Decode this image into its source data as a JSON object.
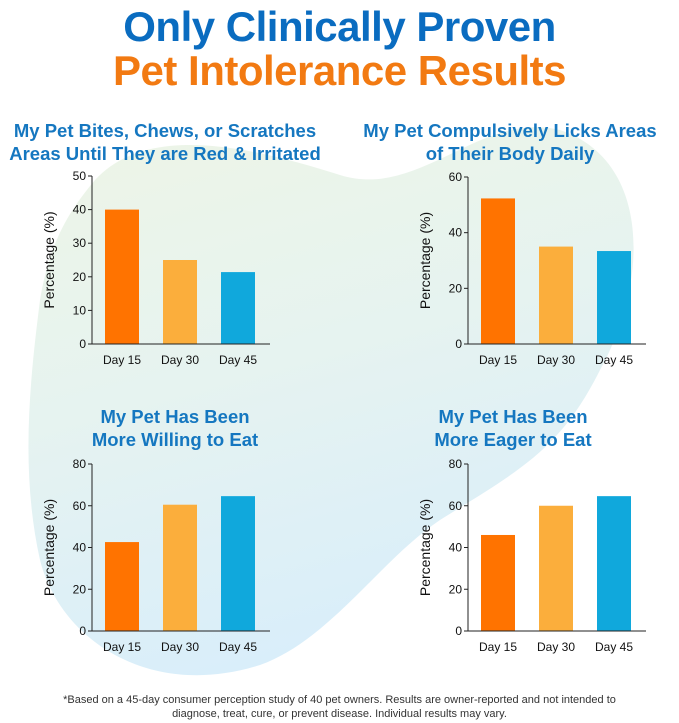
{
  "header": {
    "line1": "Only Clinically Proven",
    "line2": "Pet Intolerance Results",
    "line1_color": "#0a6cc0",
    "line2_color": "#f27a12"
  },
  "colors": {
    "day15": "#ff7300",
    "day30": "#fbae3c",
    "day45": "#10a8dc",
    "title": "#1577c0"
  },
  "chart_data": [
    {
      "type": "bar",
      "title": "My Pet Bites, Chews, or Scratches Areas Until They are Red & Irritated",
      "title_lines": [
        "My Pet Bites, Chews, or Scratches",
        "Areas Until They are Red & Irritated"
      ],
      "categories": [
        "Day 15",
        "Day 30",
        "Day 45"
      ],
      "values": [
        40,
        25,
        21.4
      ],
      "ylabel": "Percentage (%)",
      "ylim": [
        0,
        50
      ],
      "yticks": [
        0,
        10,
        20,
        30,
        40,
        50
      ],
      "grid": false
    },
    {
      "type": "bar",
      "title": "My Pet Compulsively Licks Areas of Their Body Daily",
      "title_lines": [
        "My Pet Compulsively Licks Areas",
        "of Their Body Daily"
      ],
      "categories": [
        "Day 15",
        "Day 30",
        "Day 45"
      ],
      "values": [
        52.3,
        35,
        33.4
      ],
      "ylabel": "Percentage (%)",
      "ylim": [
        0,
        60
      ],
      "yticks": [
        0,
        20,
        40,
        60
      ],
      "grid": false
    },
    {
      "type": "bar",
      "title": "My Pet Has Been More Willing to Eat",
      "title_lines": [
        "My Pet Has Been",
        "More Willing to Eat"
      ],
      "categories": [
        "Day 15",
        "Day 30",
        "Day 45"
      ],
      "values": [
        42.6,
        60.5,
        64.6
      ],
      "ylabel": "Percentage (%)",
      "ylim": [
        0,
        80
      ],
      "yticks": [
        0,
        20,
        40,
        60,
        80
      ],
      "grid": false
    },
    {
      "type": "bar",
      "title": "My Pet Has Been More Eager to Eat",
      "title_lines": [
        "My Pet Has Been",
        "More Eager to Eat"
      ],
      "categories": [
        "Day 15",
        "Day 30",
        "Day 45"
      ],
      "values": [
        46,
        60,
        64.6
      ],
      "ylabel": "Percentage (%)",
      "ylim": [
        0,
        80
      ],
      "yticks": [
        0,
        20,
        40,
        60,
        80
      ],
      "grid": false
    }
  ],
  "footnote": {
    "line1": "*Based on a 45-day consumer perception study of 40 pet owners. Results are owner-reported and not intended to",
    "line2": "diagnose, treat, cure, or prevent disease. Individual results may vary."
  }
}
